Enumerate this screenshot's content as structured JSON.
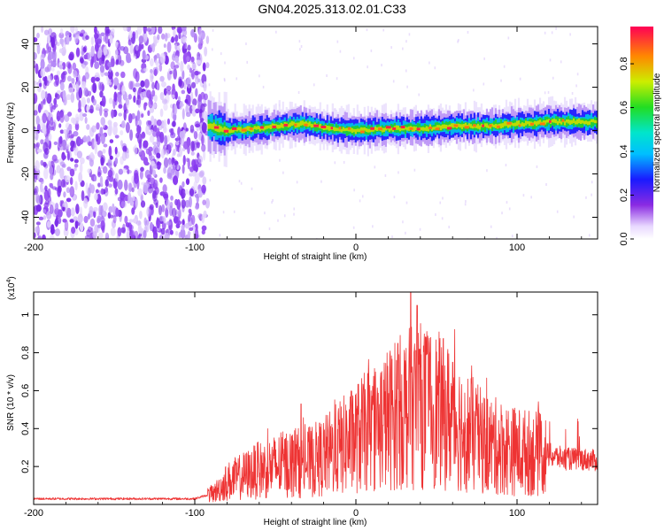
{
  "title": "GN04.2025.313.02.01.C33",
  "chart_data": [
    {
      "type": "heatmap",
      "name": "spectrogram",
      "xlabel": "Height of straight line (km)",
      "ylabel": "Frequency (Hz)",
      "xlim": [
        -200,
        150
      ],
      "ylim": [
        -50,
        48
      ],
      "xticks": [
        -200,
        -100,
        0,
        100
      ],
      "xtick_labels": [
        "-200",
        "-100",
        "0",
        "100"
      ],
      "yticks": [
        -40,
        -20,
        0,
        20,
        40
      ],
      "ytick_labels": [
        "-40",
        "-20",
        "0",
        "20",
        "40"
      ],
      "noise_region_km": [
        -200,
        -92
      ],
      "signal_start_km": -92,
      "ridge_frequency_hz": [
        {
          "x": -90,
          "f": 2
        },
        {
          "x": -80,
          "f": 0
        },
        {
          "x": -60,
          "f": 1
        },
        {
          "x": -40,
          "f": 3
        },
        {
          "x": -30,
          "f": 3
        },
        {
          "x": -20,
          "f": 1
        },
        {
          "x": 0,
          "f": 0
        },
        {
          "x": 20,
          "f": 1
        },
        {
          "x": 40,
          "f": 1
        },
        {
          "x": 60,
          "f": 2
        },
        {
          "x": 80,
          "f": 2
        },
        {
          "x": 100,
          "f": 3
        },
        {
          "x": 120,
          "f": 4
        },
        {
          "x": 150,
          "f": 4
        }
      ],
      "colorbar": {
        "label": "Normalized spectral amplitude",
        "range": [
          0,
          0.97
        ],
        "ticks": [
          0.0,
          0.2,
          0.4,
          0.6,
          0.8
        ],
        "tick_labels": [
          "0.0",
          "0.2",
          "0.4",
          "0.6",
          "0.8"
        ]
      }
    },
    {
      "type": "line",
      "name": "snr-trace",
      "xlabel": "Height of straight line (km)",
      "ylabel": "SNR (10 * v/v)",
      "yunit": "(x10",
      "yunit_exp": "4",
      "yunit_close": ")",
      "xlim": [
        -200,
        150
      ],
      "ylim": [
        0,
        1.12
      ],
      "xticks": [
        -200,
        -100,
        0,
        100
      ],
      "xtick_labels": [
        "-200",
        "-100",
        "0",
        "100"
      ],
      "yticks": [
        0.2,
        0.4,
        0.6,
        0.8,
        1.0
      ],
      "ytick_labels": [
        "0.2",
        "0.4",
        "0.6",
        "0.8",
        "1"
      ],
      "line_color": "#ee3333",
      "envelope": [
        {
          "x": -200,
          "y": 0.03
        },
        {
          "x": -100,
          "y": 0.03
        },
        {
          "x": -88,
          "y": 0.06
        },
        {
          "x": -80,
          "y": 0.12
        },
        {
          "x": -70,
          "y": 0.15
        },
        {
          "x": -60,
          "y": 0.18
        },
        {
          "x": -50,
          "y": 0.2
        },
        {
          "x": -40,
          "y": 0.22
        },
        {
          "x": -30,
          "y": 0.22
        },
        {
          "x": -20,
          "y": 0.25
        },
        {
          "x": -10,
          "y": 0.3
        },
        {
          "x": 0,
          "y": 0.35
        },
        {
          "x": 10,
          "y": 0.4
        },
        {
          "x": 20,
          "y": 0.45
        },
        {
          "x": 30,
          "y": 0.5
        },
        {
          "x": 40,
          "y": 0.52
        },
        {
          "x": 50,
          "y": 0.5
        },
        {
          "x": 60,
          "y": 0.45
        },
        {
          "x": 70,
          "y": 0.38
        },
        {
          "x": 80,
          "y": 0.32
        },
        {
          "x": 90,
          "y": 0.3
        },
        {
          "x": 100,
          "y": 0.28
        },
        {
          "x": 110,
          "y": 0.27
        },
        {
          "x": 120,
          "y": 0.26
        },
        {
          "x": 130,
          "y": 0.24
        },
        {
          "x": 140,
          "y": 0.24
        },
        {
          "x": 150,
          "y": 0.23
        }
      ],
      "peaks": [
        {
          "x": -34,
          "y": 0.53
        },
        {
          "x": 34,
          "y": 1.12
        },
        {
          "x": 38,
          "y": 1.05
        },
        {
          "x": 26,
          "y": 0.85
        },
        {
          "x": 46,
          "y": 0.8
        },
        {
          "x": 60,
          "y": 0.75
        }
      ]
    }
  ],
  "colors": {
    "trace": "#ee3333",
    "noise": "#7a2ae8"
  }
}
